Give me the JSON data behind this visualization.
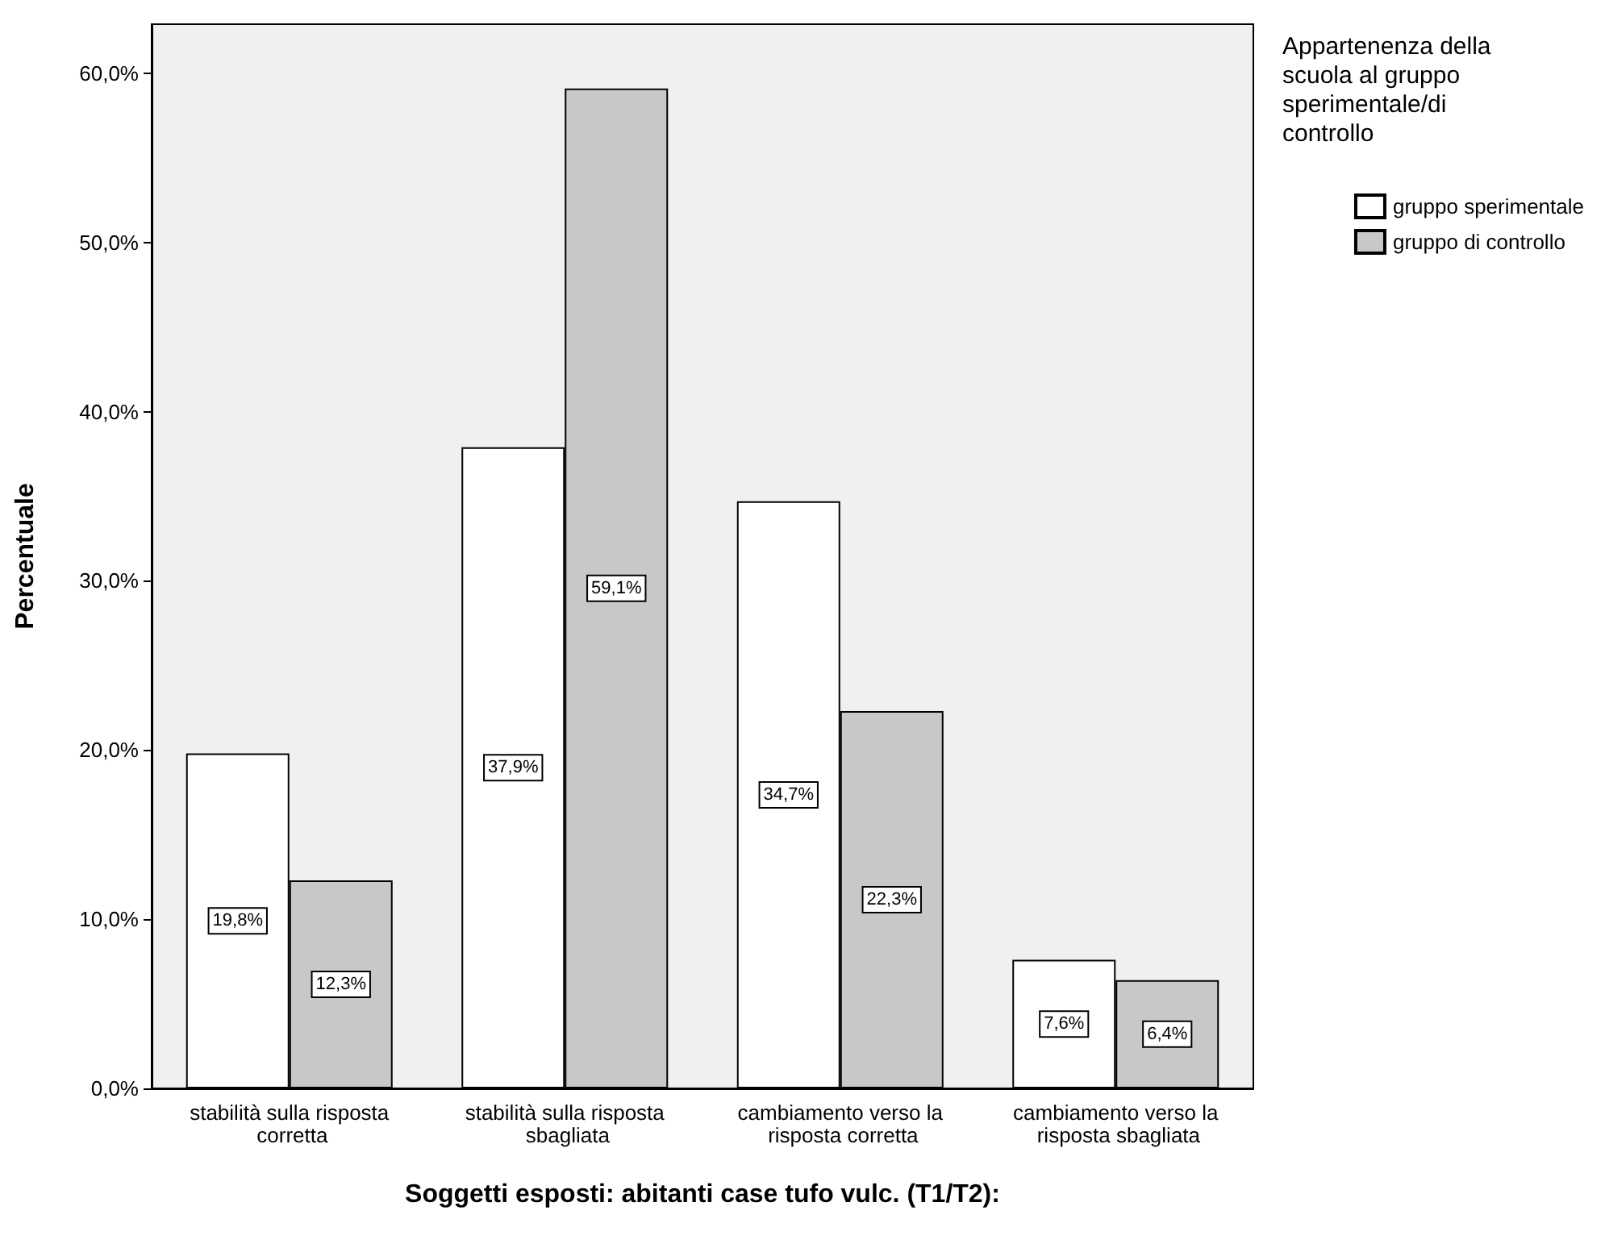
{
  "chart_data": {
    "type": "bar",
    "ylabel": "Percentuale",
    "xlabel": "Soggetti esposti: abitanti case tufo vulc. (T1/T2):",
    "legend_title": "Appartenenza della scuola al gruppo sperimentale/di controllo",
    "legend": "top right",
    "grid": false,
    "categories": [
      "stabilità sulla risposta corretta",
      "stabilità sulla risposta sbagliata",
      "cambiamento verso la risposta corretta",
      "cambiamento verso la risposta sbagliata"
    ],
    "series": [
      {
        "name": "gruppo sperimentale",
        "color": "#ffffff",
        "values": [
          19.8,
          37.9,
          34.7,
          7.6
        ],
        "value_labels": [
          "19,8%",
          "37,9%",
          "34,7%",
          "7,6%"
        ]
      },
      {
        "name": "gruppo di controllo",
        "color": "#c8c8c8",
        "values": [
          12.3,
          59.1,
          22.3,
          6.4
        ],
        "value_labels": [
          "12,3%",
          "59,1%",
          "22,3%",
          "6,4%"
        ]
      }
    ],
    "ylim": [
      0,
      62.9
    ],
    "yticks": [
      {
        "value": 0,
        "label": "0,0%"
      },
      {
        "value": 10,
        "label": "10,0%"
      },
      {
        "value": 20,
        "label": "20,0%"
      },
      {
        "value": 30,
        "label": "30,0%"
      },
      {
        "value": 40,
        "label": "40,0%"
      },
      {
        "value": 50,
        "label": "50,0%"
      },
      {
        "value": 60,
        "label": "60,0%"
      }
    ]
  }
}
